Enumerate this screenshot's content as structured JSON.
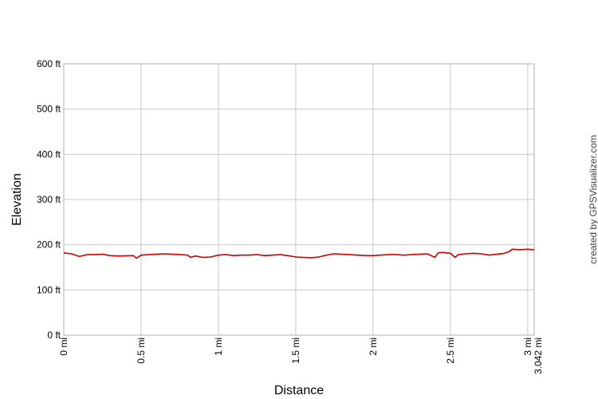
{
  "chart_data": {
    "type": "line",
    "title": "",
    "xlabel": "Distance",
    "ylabel": "Elevation",
    "xlim": [
      0,
      3.042
    ],
    "ylim": [
      0,
      600
    ],
    "grid": true,
    "x_ticks": [
      {
        "value": 0,
        "label": "0 mi"
      },
      {
        "value": 0.5,
        "label": "0.5 mi"
      },
      {
        "value": 1,
        "label": "1 mi"
      },
      {
        "value": 1.5,
        "label": "1.5 mi"
      },
      {
        "value": 2,
        "label": "2 mi"
      },
      {
        "value": 2.5,
        "label": "2.5 mi"
      },
      {
        "value": 3,
        "label": "3 mi"
      },
      {
        "value": 3.042,
        "label": "3.042 mi"
      }
    ],
    "y_ticks": [
      {
        "value": 0,
        "label": "0 ft"
      },
      {
        "value": 100,
        "label": "100 ft"
      },
      {
        "value": 200,
        "label": "200 ft"
      },
      {
        "value": 300,
        "label": "300 ft"
      },
      {
        "value": 400,
        "label": "400 ft"
      },
      {
        "value": 500,
        "label": "500 ft"
      },
      {
        "value": 600,
        "label": "600 ft"
      }
    ],
    "series": [
      {
        "color": "#cc0000",
        "x": [
          0,
          0.05,
          0.1,
          0.15,
          0.2,
          0.25,
          0.3,
          0.35,
          0.45,
          0.47,
          0.5,
          0.55,
          0.6,
          0.65,
          0.7,
          0.75,
          0.8,
          0.82,
          0.85,
          0.9,
          0.95,
          1.0,
          1.05,
          1.1,
          1.15,
          1.2,
          1.25,
          1.3,
          1.35,
          1.4,
          1.45,
          1.5,
          1.55,
          1.6,
          1.65,
          1.7,
          1.75,
          1.8,
          1.85,
          1.9,
          1.95,
          2.0,
          2.05,
          2.1,
          2.15,
          2.2,
          2.25,
          2.3,
          2.35,
          2.4,
          2.42,
          2.45,
          2.5,
          2.53,
          2.55,
          2.6,
          2.65,
          2.7,
          2.75,
          2.8,
          2.85,
          2.88,
          2.9,
          2.95,
          3.0,
          3.042
        ],
        "y": [
          182,
          180,
          174,
          178,
          178,
          179,
          176,
          175,
          176,
          170,
          177,
          178,
          179,
          180,
          179,
          178,
          177,
          172,
          175,
          172,
          173,
          177,
          178,
          176,
          177,
          177,
          178,
          176,
          177,
          178,
          176,
          173,
          172,
          171,
          173,
          177,
          180,
          179,
          178,
          177,
          176,
          176,
          177,
          178,
          178,
          177,
          178,
          179,
          180,
          172,
          182,
          183,
          181,
          172,
          178,
          180,
          181,
          180,
          177,
          179,
          181,
          185,
          190,
          189,
          190,
          189
        ]
      }
    ]
  },
  "credit": "created by GPSVisualizer.com"
}
